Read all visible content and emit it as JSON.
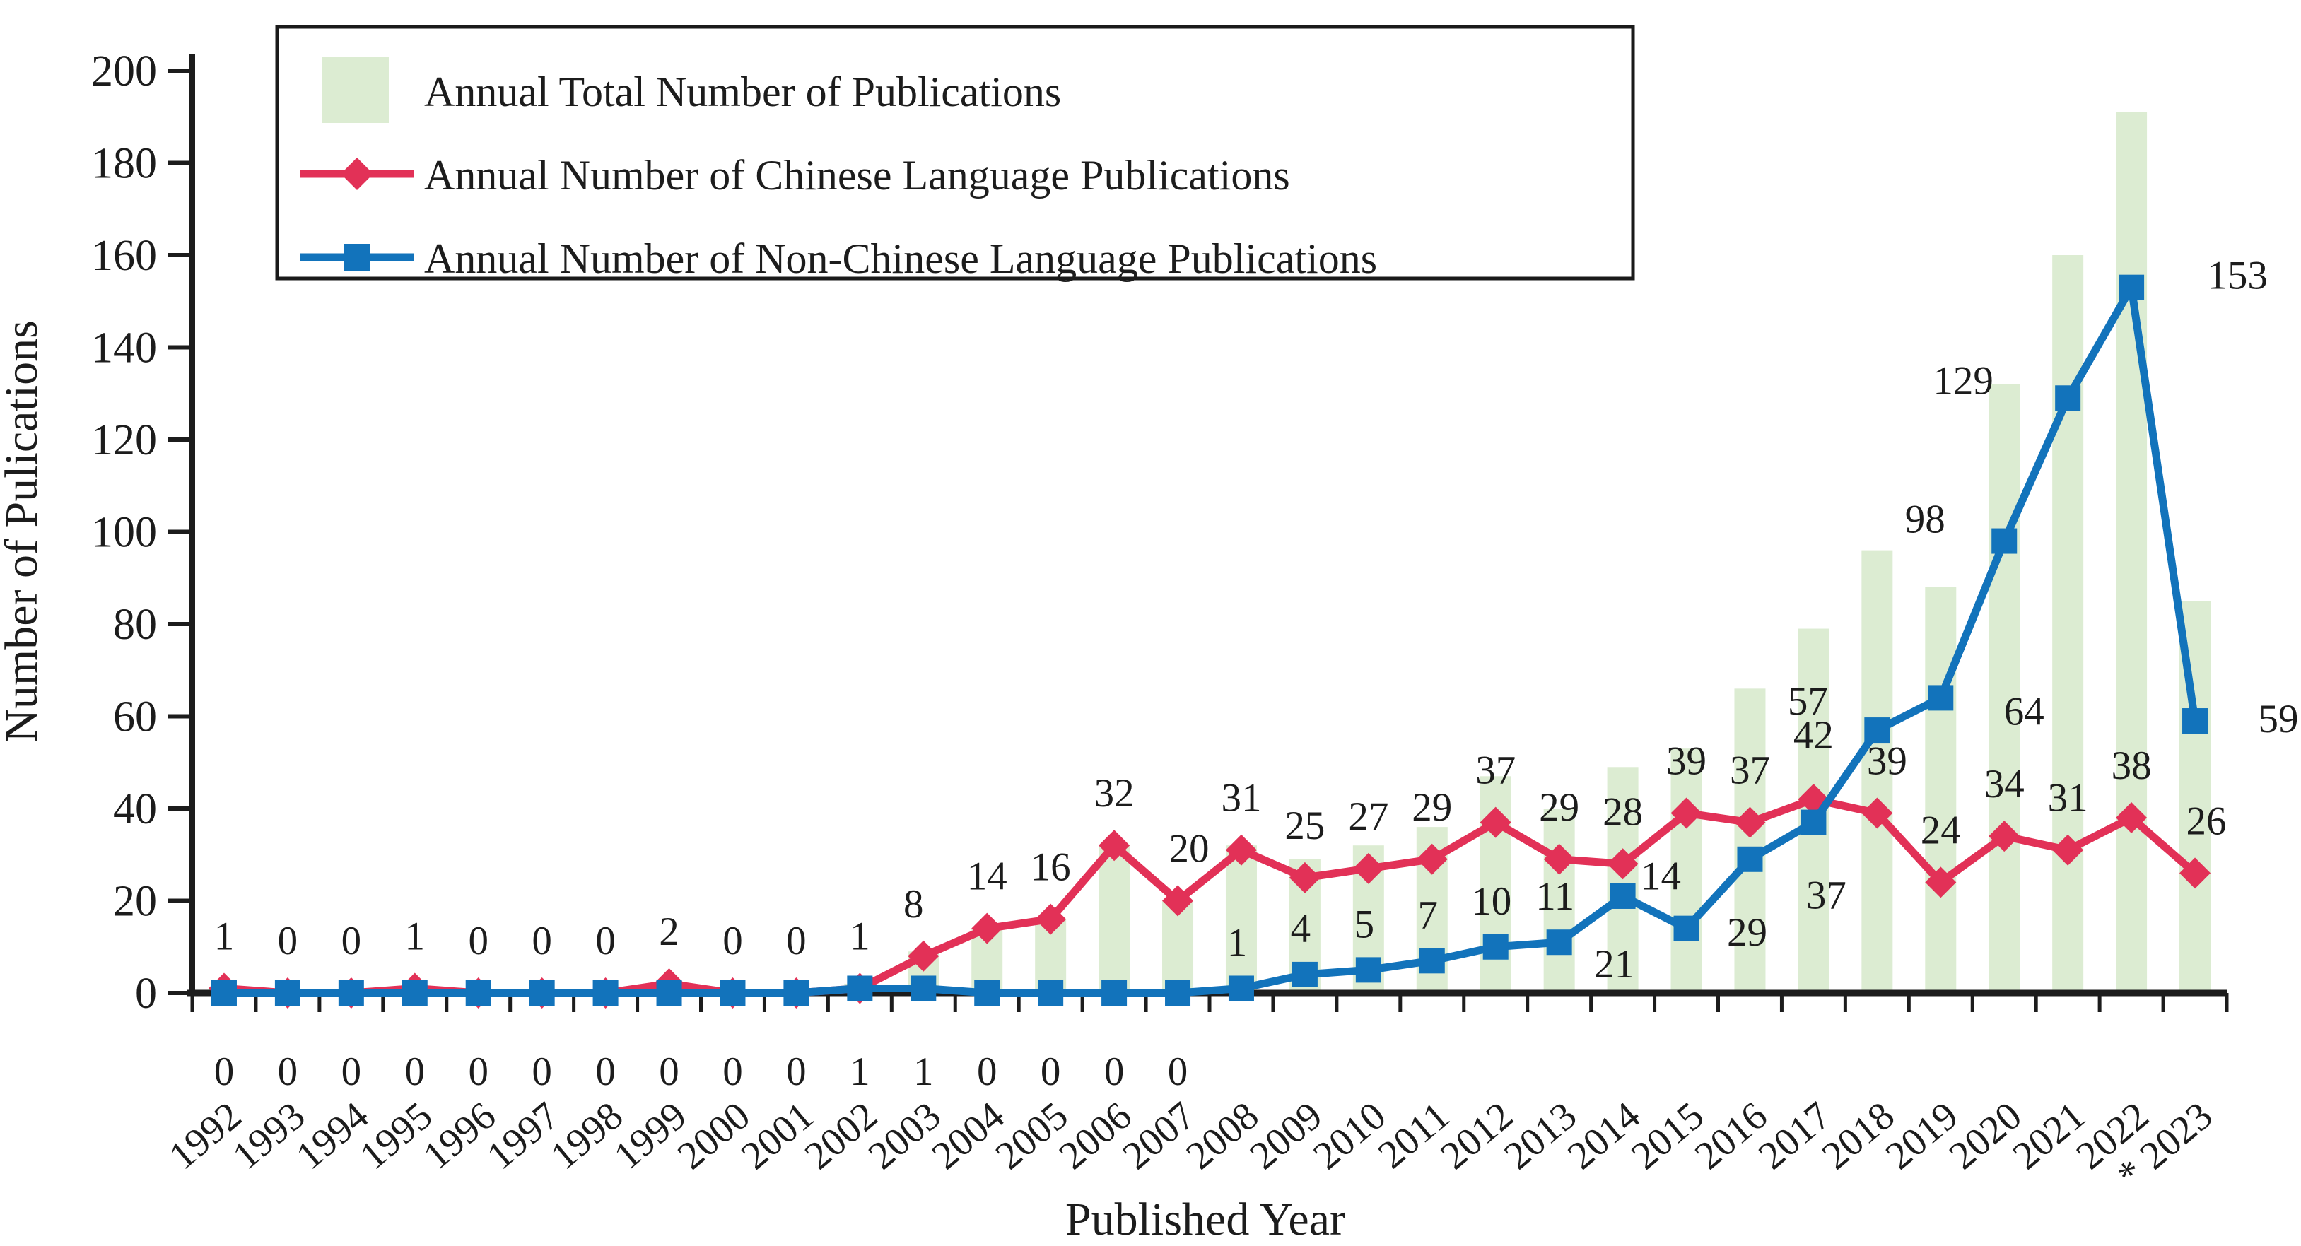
{
  "figure": {
    "background": "#ffffff",
    "axis_color": "#1c1c1c"
  },
  "chart_data": {
    "type": "bar+line",
    "title": "",
    "xlabel": "Published Year",
    "ylabel": "Number of Pulications",
    "x_tick_labels": [
      "1992",
      "1993",
      "1994",
      "1995",
      "1996",
      "1997",
      "1998",
      "1999",
      "2000",
      "2001",
      "2002",
      "2003",
      "2004",
      "2005",
      "2006",
      "2007",
      "2008",
      "2009",
      "2010",
      "2011",
      "2012",
      "2013",
      "2014",
      "2015",
      "2016",
      "2017",
      "2018",
      "2019",
      "2020",
      "2021",
      "2022",
      "* 2023"
    ],
    "ylim": [
      0,
      200
    ],
    "yticks": [
      0,
      20,
      40,
      60,
      80,
      100,
      120,
      140,
      160,
      180,
      200
    ],
    "grid": false,
    "legend_position": "top-left",
    "series": [
      {
        "name": "Annual Total Number of Publications",
        "type": "bar",
        "color": "#dcecd2",
        "data_labels": false,
        "values": [
          1,
          0,
          0,
          1,
          0,
          0,
          0,
          2,
          0,
          0,
          2,
          9,
          14,
          16,
          32,
          20,
          32,
          29,
          32,
          36,
          47,
          40,
          49,
          53,
          66,
          79,
          96,
          88,
          132,
          160,
          191,
          85
        ]
      },
      {
        "name": "Annual Number of Chinese Language Publications",
        "type": "line",
        "marker": "diamond",
        "color": "#e23157",
        "data_labels": true,
        "values": [
          1,
          0,
          0,
          1,
          0,
          0,
          0,
          2,
          0,
          0,
          1,
          8,
          14,
          16,
          32,
          20,
          31,
          25,
          27,
          29,
          37,
          29,
          28,
          39,
          37,
          42,
          39,
          24,
          34,
          31,
          38,
          26
        ]
      },
      {
        "name": "Annual Number of Non-Chinese Language Publications",
        "type": "line",
        "marker": "square",
        "color": "#1273bb",
        "data_labels": true,
        "values": [
          0,
          0,
          0,
          0,
          0,
          0,
          0,
          0,
          0,
          0,
          1,
          1,
          0,
          0,
          0,
          0,
          1,
          4,
          5,
          7,
          10,
          11,
          21,
          14,
          29,
          37,
          57,
          64,
          98,
          129,
          153,
          59
        ]
      }
    ],
    "layout_hints": {
      "blue_labels_below_axis_through_index": 15,
      "red_label_default_offset": [
        0,
        -55
      ],
      "blue_label_default_offset": [
        -6,
        -46
      ],
      "red_label_offsets": {
        "11": [
          -14,
          -55
        ],
        "15": [
          16,
          -55
        ],
        "25": [
          0,
          -72
        ],
        "26": [
          14,
          -55
        ],
        "31": [
          16,
          -55
        ]
      },
      "blue_label_offsets": {
        "22": [
          -12,
          115
        ],
        "23": [
          -36,
          -55
        ],
        "24": [
          -4,
          122
        ],
        "25": [
          18,
          122
        ],
        "26": [
          -98,
          -22
        ],
        "27": [
          118,
          38
        ],
        "28": [
          -112,
          -12
        ],
        "29": [
          -148,
          -6
        ],
        "30": [
          150,
          2
        ],
        "31": [
          118,
          16
        ]
      }
    }
  }
}
